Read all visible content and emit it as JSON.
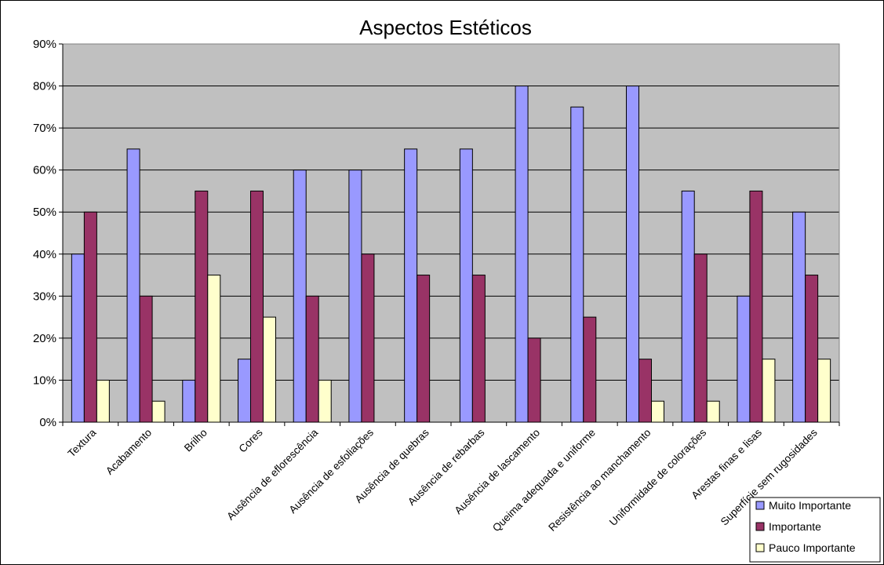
{
  "chart_data": {
    "type": "bar",
    "title": "Aspectos Estéticos",
    "xlabel": "",
    "ylabel": "",
    "ylim": [
      0,
      90
    ],
    "yticks": [
      "0%",
      "10%",
      "20%",
      "30%",
      "40%",
      "50%",
      "60%",
      "70%",
      "80%",
      "90%"
    ],
    "grid": true,
    "legend_position": "bottom-right",
    "categories": [
      "Textura",
      "Acabamento",
      "Brilho",
      "Cores",
      "Ausência de eflorescência",
      "Ausência de esfoliações",
      "Ausência de quebras",
      "Ausência de rebarbas",
      "Ausência de lascamento",
      "Queima adequada e uniforme",
      "Resistência ao manchamento",
      "Uniformidade de colorações",
      "Arestas finas e lisas",
      "Superfície sem rugosidades"
    ],
    "series": [
      {
        "name": "Muito Importante",
        "color": "#9999ff",
        "values": [
          40,
          65,
          10,
          15,
          60,
          60,
          65,
          65,
          80,
          75,
          80,
          55,
          30,
          50
        ]
      },
      {
        "name": "Importante",
        "color": "#993366",
        "values": [
          50,
          30,
          55,
          55,
          30,
          40,
          35,
          35,
          20,
          25,
          15,
          40,
          55,
          35
        ]
      },
      {
        "name": "Pauco Importante",
        "color": "#ffffcc",
        "values": [
          10,
          5,
          35,
          25,
          10,
          0,
          0,
          0,
          0,
          0,
          5,
          5,
          15,
          15
        ]
      }
    ],
    "plot_background": "#c0c0c0",
    "gridline_color": "#000000"
  }
}
